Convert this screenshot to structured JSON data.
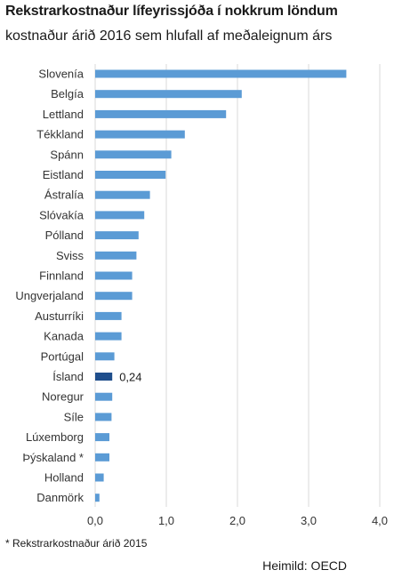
{
  "header": {
    "title": "Rekstrarkostnaður lífeyrissjóða í nokkrum löndum",
    "subtitle": "kostnaður árið 2016 sem hlufall af meðaleignum árs"
  },
  "footer": {
    "footnote": "* Rekstrarkostnaður árið 2015",
    "source": "Heimild: OECD"
  },
  "chart_data": {
    "type": "bar",
    "orientation": "horizontal",
    "title": "Rekstrarkostnaður lífeyrissjóða í nokkrum löndum",
    "subtitle": "kostnaður árið 2016 sem hlufall af meðaleignum árs",
    "categories": [
      "Slovenía",
      "Belgía",
      "Lettland",
      "Tékkland",
      "Spánn",
      "Eistland",
      "Ástralía",
      "Slóvakía",
      "Pólland",
      "Sviss",
      "Finnland",
      "Ungverjaland",
      "Austurríki",
      "Kanada",
      "Portúgal",
      "Ísland",
      "Noregur",
      "Síle",
      "Lúxemborg",
      "Þýskaland *",
      "Holland",
      "Danmörk"
    ],
    "values": [
      3.53,
      2.06,
      1.84,
      1.26,
      1.07,
      0.99,
      0.77,
      0.69,
      0.61,
      0.58,
      0.52,
      0.52,
      0.37,
      0.37,
      0.27,
      0.24,
      0.24,
      0.23,
      0.2,
      0.2,
      0.12,
      0.06
    ],
    "highlight": {
      "category": "Ísland",
      "label": "0,24",
      "color": "#1f4e8c"
    },
    "bar_color": "#5b9bd5",
    "xlim": [
      0,
      4
    ],
    "xticks": [
      0,
      1,
      2,
      3,
      4
    ],
    "xtick_labels": [
      "0,0",
      "1,0",
      "2,0",
      "3,0",
      "4,0"
    ],
    "grid": "vertical",
    "grid_color": "#d9d9d9",
    "legend": "none"
  }
}
